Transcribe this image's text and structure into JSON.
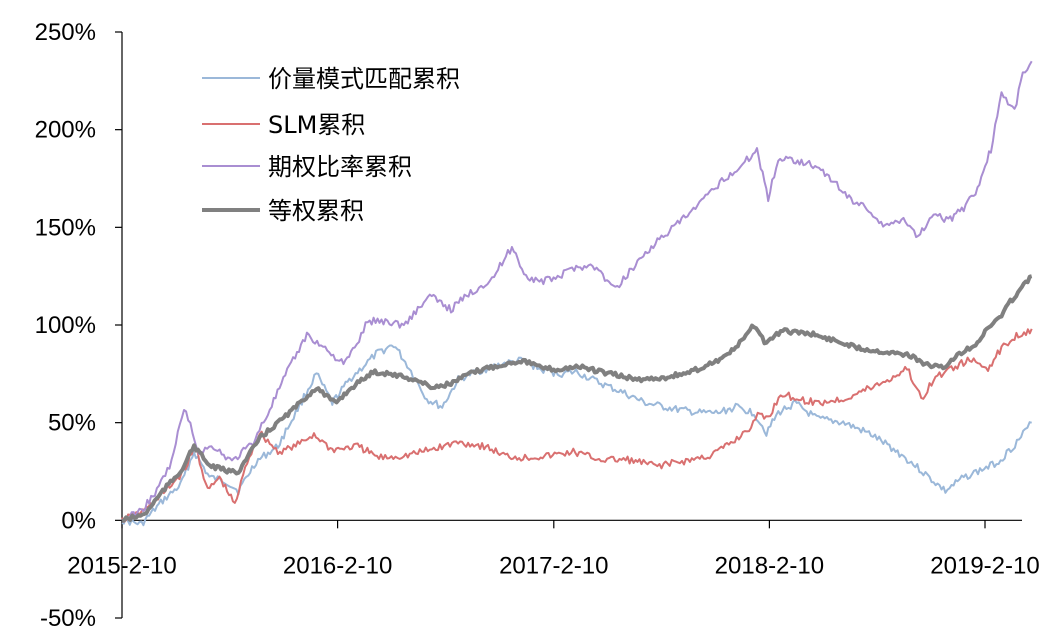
{
  "chart_data": {
    "type": "line",
    "title": "",
    "xlabel": "",
    "ylabel": "",
    "ylim": [
      -50,
      250
    ],
    "yticks": [
      -50,
      0,
      50,
      100,
      150,
      200,
      250
    ],
    "ytick_labels": [
      "-50%",
      "0%",
      "50%",
      "100%",
      "150%",
      "200%",
      "250%"
    ],
    "xlim": [
      "2015-02-10",
      "2019-04-30"
    ],
    "xtick_labels": [
      "2015-2-10",
      "2016-2-10",
      "2017-2-10",
      "2018-2-10",
      "2019-2-10"
    ],
    "xticks": [
      "2015-02-10",
      "2016-02-10",
      "2017-02-10",
      "2018-02-10",
      "2019-02-10"
    ],
    "grid": false,
    "legend_position": "top-left",
    "series": [
      {
        "name": "价量模式匹配累积",
        "color": "#9bb8d9",
        "width": 2,
        "points": [
          [
            "2015-02-10",
            0
          ],
          [
            "2015-03-15",
            -2
          ],
          [
            "2015-04-20",
            10
          ],
          [
            "2015-05-20",
            18
          ],
          [
            "2015-06-12",
            35
          ],
          [
            "2015-07-08",
            22
          ],
          [
            "2015-08-05",
            20
          ],
          [
            "2015-08-26",
            15
          ],
          [
            "2015-09-25",
            30
          ],
          [
            "2015-11-01",
            38
          ],
          [
            "2015-12-01",
            55
          ],
          [
            "2016-01-05",
            75
          ],
          [
            "2016-02-01",
            60
          ],
          [
            "2016-03-01",
            72
          ],
          [
            "2016-04-15",
            85
          ],
          [
            "2016-05-15",
            90
          ],
          [
            "2016-06-10",
            78
          ],
          [
            "2016-07-10",
            62
          ],
          [
            "2016-08-05",
            58
          ],
          [
            "2016-09-01",
            72
          ],
          [
            "2016-10-01",
            76
          ],
          [
            "2016-11-15",
            80
          ],
          [
            "2016-12-20",
            82
          ],
          [
            "2017-01-20",
            77
          ],
          [
            "2017-02-20",
            75
          ],
          [
            "2017-03-20",
            76
          ],
          [
            "2017-05-01",
            70
          ],
          [
            "2017-06-10",
            65
          ],
          [
            "2017-07-15",
            60
          ],
          [
            "2017-09-01",
            57
          ],
          [
            "2017-10-15",
            55
          ],
          [
            "2017-11-15",
            55
          ],
          [
            "2017-12-15",
            58
          ],
          [
            "2018-01-15",
            55
          ],
          [
            "2018-02-05",
            45
          ],
          [
            "2018-02-25",
            55
          ],
          [
            "2018-03-25",
            60
          ],
          [
            "2018-05-01",
            52
          ],
          [
            "2018-06-15",
            50
          ],
          [
            "2018-08-01",
            44
          ],
          [
            "2018-09-15",
            35
          ],
          [
            "2018-10-15",
            28
          ],
          [
            "2018-11-15",
            20
          ],
          [
            "2018-12-05",
            15
          ],
          [
            "2019-01-05",
            22
          ],
          [
            "2019-02-05",
            26
          ],
          [
            "2019-03-05",
            30
          ],
          [
            "2019-04-05",
            40
          ],
          [
            "2019-04-30",
            50
          ]
        ]
      },
      {
        "name": "SLM累积",
        "color": "#d97070",
        "width": 2,
        "points": [
          [
            "2015-02-10",
            0
          ],
          [
            "2015-03-20",
            5
          ],
          [
            "2015-04-25",
            15
          ],
          [
            "2015-05-25",
            25
          ],
          [
            "2015-06-15",
            38
          ],
          [
            "2015-07-05",
            15
          ],
          [
            "2015-07-25",
            22
          ],
          [
            "2015-08-20",
            8
          ],
          [
            "2015-09-10",
            30
          ],
          [
            "2015-10-01",
            45
          ],
          [
            "2015-11-01",
            35
          ],
          [
            "2015-12-01",
            38
          ],
          [
            "2016-01-01",
            44
          ],
          [
            "2016-02-01",
            36
          ],
          [
            "2016-03-15",
            38
          ],
          [
            "2016-04-20",
            32
          ],
          [
            "2016-06-01",
            33
          ],
          [
            "2016-07-15",
            36
          ],
          [
            "2016-09-01",
            40
          ],
          [
            "2016-10-15",
            38
          ],
          [
            "2016-11-20",
            33
          ],
          [
            "2016-12-20",
            32
          ],
          [
            "2017-02-01",
            33
          ],
          [
            "2017-03-15",
            35
          ],
          [
            "2017-05-01",
            31
          ],
          [
            "2017-06-15",
            31
          ],
          [
            "2017-08-01",
            28
          ],
          [
            "2017-09-15",
            30
          ],
          [
            "2017-11-01",
            33
          ],
          [
            "2017-12-10",
            40
          ],
          [
            "2018-01-10",
            48
          ],
          [
            "2018-01-25",
            55
          ],
          [
            "2018-02-08",
            52
          ],
          [
            "2018-03-01",
            65
          ],
          [
            "2018-04-01",
            62
          ],
          [
            "2018-05-01",
            60
          ],
          [
            "2018-06-15",
            62
          ],
          [
            "2018-08-01",
            68
          ],
          [
            "2018-09-01",
            72
          ],
          [
            "2018-10-01",
            78
          ],
          [
            "2018-10-25",
            62
          ],
          [
            "2018-11-15",
            72
          ],
          [
            "2018-12-15",
            78
          ],
          [
            "2019-01-15",
            82
          ],
          [
            "2019-02-15",
            78
          ],
          [
            "2019-03-10",
            88
          ],
          [
            "2019-04-01",
            94
          ],
          [
            "2019-04-30",
            98
          ]
        ]
      },
      {
        "name": "期权比率累积",
        "color": "#a98ed2",
        "width": 2,
        "points": [
          [
            "2015-02-10",
            0
          ],
          [
            "2015-03-15",
            5
          ],
          [
            "2015-04-10",
            15
          ],
          [
            "2015-05-05",
            30
          ],
          [
            "2015-05-26",
            58
          ],
          [
            "2015-06-20",
            35
          ],
          [
            "2015-07-15",
            38
          ],
          [
            "2015-08-15",
            30
          ],
          [
            "2015-09-20",
            40
          ],
          [
            "2015-10-15",
            55
          ],
          [
            "2015-11-20",
            78
          ],
          [
            "2015-12-20",
            95
          ],
          [
            "2016-01-20",
            88
          ],
          [
            "2016-02-20",
            80
          ],
          [
            "2016-03-10",
            88
          ],
          [
            "2016-04-01",
            102
          ],
          [
            "2016-05-01",
            102
          ],
          [
            "2016-06-01",
            100
          ],
          [
            "2016-07-15",
            115
          ],
          [
            "2016-08-20",
            108
          ],
          [
            "2016-09-15",
            115
          ],
          [
            "2016-10-10",
            120
          ],
          [
            "2016-11-01",
            125
          ],
          [
            "2016-12-01",
            140
          ],
          [
            "2016-12-25",
            125
          ],
          [
            "2017-01-20",
            122
          ],
          [
            "2017-02-20",
            125
          ],
          [
            "2017-03-20",
            130
          ],
          [
            "2017-04-20",
            130
          ],
          [
            "2017-05-25",
            118
          ],
          [
            "2017-06-25",
            130
          ],
          [
            "2017-07-25",
            140
          ],
          [
            "2017-09-01",
            150
          ],
          [
            "2017-10-01",
            158
          ],
          [
            "2017-10-25",
            165
          ],
          [
            "2017-11-25",
            175
          ],
          [
            "2017-12-20",
            180
          ],
          [
            "2018-01-20",
            190
          ],
          [
            "2018-02-08",
            165
          ],
          [
            "2018-02-25",
            185
          ],
          [
            "2018-03-20",
            185
          ],
          [
            "2018-04-25",
            182
          ],
          [
            "2018-05-25",
            175
          ],
          [
            "2018-06-25",
            165
          ],
          [
            "2018-07-25",
            160
          ],
          [
            "2018-08-25",
            150
          ],
          [
            "2018-09-25",
            155
          ],
          [
            "2018-10-20",
            145
          ],
          [
            "2018-11-15",
            158
          ],
          [
            "2018-12-10",
            153
          ],
          [
            "2019-01-05",
            160
          ],
          [
            "2019-01-25",
            168
          ],
          [
            "2019-02-20",
            190
          ],
          [
            "2019-03-10",
            218
          ],
          [
            "2019-04-01",
            210
          ],
          [
            "2019-04-15",
            228
          ],
          [
            "2019-04-30",
            235
          ]
        ]
      },
      {
        "name": "等权累积",
        "color": "#808080",
        "width": 4,
        "points": [
          [
            "2015-02-10",
            0
          ],
          [
            "2015-03-20",
            3
          ],
          [
            "2015-04-20",
            15
          ],
          [
            "2015-05-20",
            25
          ],
          [
            "2015-06-12",
            38
          ],
          [
            "2015-07-08",
            28
          ],
          [
            "2015-08-10",
            25
          ],
          [
            "2015-08-26",
            25
          ],
          [
            "2015-10-01",
            42
          ],
          [
            "2015-11-01",
            50
          ],
          [
            "2015-12-01",
            58
          ],
          [
            "2016-01-05",
            68
          ],
          [
            "2016-02-05",
            60
          ],
          [
            "2016-03-05",
            68
          ],
          [
            "2016-04-10",
            76
          ],
          [
            "2016-05-10",
            75
          ],
          [
            "2016-06-20",
            72
          ],
          [
            "2016-07-20",
            68
          ],
          [
            "2016-08-20",
            70
          ],
          [
            "2016-09-20",
            75
          ],
          [
            "2016-10-20",
            78
          ],
          [
            "2016-11-20",
            80
          ],
          [
            "2016-12-20",
            82
          ],
          [
            "2017-01-20",
            78
          ],
          [
            "2017-02-20",
            77
          ],
          [
            "2017-03-20",
            79
          ],
          [
            "2017-05-01",
            76
          ],
          [
            "2017-06-01",
            74
          ],
          [
            "2017-07-01",
            72
          ],
          [
            "2017-08-15",
            73
          ],
          [
            "2017-10-01",
            76
          ],
          [
            "2017-11-15",
            82
          ],
          [
            "2017-12-15",
            88
          ],
          [
            "2018-01-15",
            100
          ],
          [
            "2018-02-05",
            90
          ],
          [
            "2018-03-01",
            97
          ],
          [
            "2018-04-15",
            96
          ],
          [
            "2018-06-01",
            92
          ],
          [
            "2018-07-15",
            88
          ],
          [
            "2018-09-01",
            86
          ],
          [
            "2018-10-01",
            85
          ],
          [
            "2018-11-01",
            80
          ],
          [
            "2018-12-01",
            78
          ],
          [
            "2019-01-01",
            86
          ],
          [
            "2019-01-25",
            90
          ],
          [
            "2019-02-20",
            100
          ],
          [
            "2019-03-10",
            105
          ],
          [
            "2019-03-25",
            112
          ],
          [
            "2019-04-10",
            118
          ],
          [
            "2019-04-30",
            125
          ]
        ]
      }
    ]
  }
}
